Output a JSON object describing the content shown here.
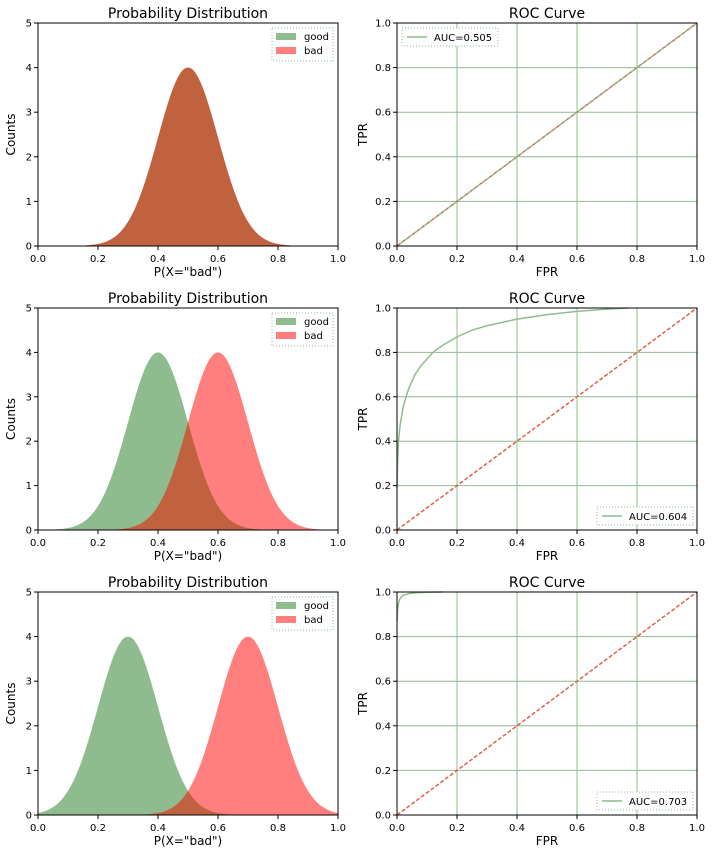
{
  "colors": {
    "good": "#8fbc8f",
    "bad": "#ff7f7f",
    "overlap": "#c0623f",
    "grid": "#8fbc8f",
    "diag": "#e0604a"
  },
  "chart_data": [
    {
      "type": "area",
      "panel": "row1-left",
      "title": "Probability Distribution",
      "xlabel": "P(X=\"bad\")",
      "ylabel": "Counts",
      "xlim": [
        0,
        1
      ],
      "ylim": [
        0,
        5
      ],
      "xticks": [
        "0.0",
        "0.2",
        "0.4",
        "0.6",
        "0.8",
        "1.0"
      ],
      "yticks": [
        "0",
        "1",
        "2",
        "3",
        "4",
        "5"
      ],
      "grid": false,
      "legend": {
        "placement": "top-right",
        "entries": [
          "good",
          "bad"
        ]
      },
      "series": [
        {
          "name": "good",
          "distribution": "normal",
          "mean": 0.5,
          "std": 0.1,
          "peak": 4.0
        },
        {
          "name": "bad",
          "distribution": "normal",
          "mean": 0.5,
          "std": 0.1,
          "peak": 4.0
        }
      ]
    },
    {
      "type": "line",
      "panel": "row1-right",
      "title": "ROC Curve",
      "xlabel": "FPR",
      "ylabel": "TPR",
      "xlim": [
        0,
        1
      ],
      "ylim": [
        0,
        1
      ],
      "xticks": [
        "0.0",
        "0.2",
        "0.4",
        "0.6",
        "0.8",
        "1.0"
      ],
      "yticks": [
        "0.0",
        "0.2",
        "0.4",
        "0.6",
        "0.8",
        "1.0"
      ],
      "grid": true,
      "legend": {
        "placement": "top-left",
        "entries": [
          "AUC=0.505"
        ]
      },
      "series": [
        {
          "name": "AUC=0.505",
          "x": [
            0,
            0.2,
            0.4,
            0.6,
            0.8,
            1.0
          ],
          "y": [
            0,
            0.2,
            0.4,
            0.6,
            0.8,
            1.0
          ]
        },
        {
          "name": "diagonal",
          "x": [
            0,
            1
          ],
          "y": [
            0,
            1
          ]
        }
      ]
    },
    {
      "type": "area",
      "panel": "row2-left",
      "title": "Probability Distribution",
      "xlabel": "P(X=\"bad\")",
      "ylabel": "Counts",
      "xlim": [
        0,
        1
      ],
      "ylim": [
        0,
        5
      ],
      "xticks": [
        "0.0",
        "0.2",
        "0.4",
        "0.6",
        "0.8",
        "1.0"
      ],
      "yticks": [
        "0",
        "1",
        "2",
        "3",
        "4",
        "5"
      ],
      "grid": false,
      "legend": {
        "placement": "top-right",
        "entries": [
          "good",
          "bad"
        ]
      },
      "series": [
        {
          "name": "good",
          "distribution": "normal",
          "mean": 0.4,
          "std": 0.1,
          "peak": 4.0
        },
        {
          "name": "bad",
          "distribution": "normal",
          "mean": 0.6,
          "std": 0.1,
          "peak": 4.0
        }
      ]
    },
    {
      "type": "line",
      "panel": "row2-right",
      "title": "ROC Curve",
      "xlabel": "FPR",
      "ylabel": "TPR",
      "xlim": [
        0,
        1
      ],
      "ylim": [
        0,
        1
      ],
      "xticks": [
        "0.0",
        "0.2",
        "0.4",
        "0.6",
        "0.8",
        "1.0"
      ],
      "yticks": [
        "0.0",
        "0.2",
        "0.4",
        "0.6",
        "0.8",
        "1.0"
      ],
      "grid": true,
      "legend": {
        "placement": "bottom-right",
        "entries": [
          "AUC=0.604"
        ]
      },
      "series": [
        {
          "name": "AUC=0.604",
          "x": [
            0,
            0.002,
            0.005,
            0.01,
            0.02,
            0.03,
            0.04,
            0.06,
            0.08,
            0.1,
            0.12,
            0.15,
            0.2,
            0.25,
            0.3,
            0.4,
            0.5,
            0.6,
            0.7,
            0.77
          ],
          "y": [
            0.19,
            0.3,
            0.4,
            0.47,
            0.55,
            0.6,
            0.64,
            0.7,
            0.74,
            0.77,
            0.8,
            0.83,
            0.87,
            0.9,
            0.92,
            0.95,
            0.97,
            0.985,
            0.995,
            1.0
          ]
        },
        {
          "name": "diagonal",
          "x": [
            0,
            1
          ],
          "y": [
            0,
            1
          ]
        }
      ]
    },
    {
      "type": "area",
      "panel": "row3-left",
      "title": "Probability Distribution",
      "xlabel": "P(X=\"bad\")",
      "ylabel": "Counts",
      "xlim": [
        0,
        1
      ],
      "ylim": [
        0,
        5
      ],
      "xticks": [
        "0.0",
        "0.2",
        "0.4",
        "0.6",
        "0.8",
        "1.0"
      ],
      "yticks": [
        "0",
        "1",
        "2",
        "3",
        "4",
        "5"
      ],
      "grid": false,
      "legend": {
        "placement": "top-right",
        "entries": [
          "good",
          "bad"
        ]
      },
      "series": [
        {
          "name": "good",
          "distribution": "normal",
          "mean": 0.3,
          "std": 0.1,
          "peak": 4.0
        },
        {
          "name": "bad",
          "distribution": "normal",
          "mean": 0.7,
          "std": 0.1,
          "peak": 4.0
        }
      ]
    },
    {
      "type": "line",
      "panel": "row3-right",
      "title": "ROC Curve",
      "xlabel": "FPR",
      "ylabel": "TPR",
      "xlim": [
        0,
        1
      ],
      "ylim": [
        0,
        1
      ],
      "xticks": [
        "0.0",
        "0.2",
        "0.4",
        "0.6",
        "0.8",
        "1.0"
      ],
      "yticks": [
        "0.0",
        "0.2",
        "0.4",
        "0.6",
        "0.8",
        "1.0"
      ],
      "grid": true,
      "legend": {
        "placement": "bottom-right",
        "entries": [
          "AUC=0.703"
        ]
      },
      "series": [
        {
          "name": "AUC=0.703",
          "x": [
            0,
            0.002,
            0.005,
            0.01,
            0.02,
            0.04,
            0.07,
            0.1,
            0.15
          ],
          "y": [
            0.87,
            0.92,
            0.95,
            0.97,
            0.985,
            0.993,
            0.997,
            0.999,
            1.0
          ]
        },
        {
          "name": "diagonal",
          "x": [
            0,
            1
          ],
          "y": [
            0,
            1
          ]
        }
      ]
    }
  ]
}
